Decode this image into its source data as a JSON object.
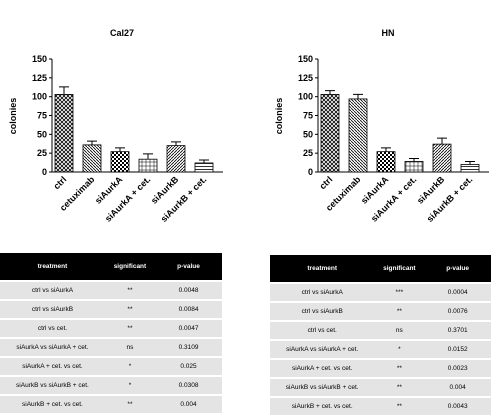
{
  "chart_data": [
    {
      "type": "bar",
      "title": "Cal27",
      "y_label": "colonies",
      "categories": [
        "ctrl",
        "cetuximab",
        "siAurkA",
        "siAurkA + cet.",
        "siAurkB",
        "siAurkB + cet."
      ],
      "values": [
        103,
        36,
        27,
        17,
        35,
        12
      ],
      "errors": [
        10,
        5,
        5,
        7,
        5,
        4
      ],
      "ylim": [
        0,
        150
      ],
      "yticks": [
        0,
        25,
        50,
        75,
        100,
        125,
        150
      ]
    },
    {
      "type": "bar",
      "title": "HN",
      "y_label": "colonies",
      "categories": [
        "ctrl",
        "cetuximab",
        "siAurkA",
        "siAurkA + cet.",
        "siAurkB",
        "siAurkB + cet."
      ],
      "values": [
        103,
        97,
        27,
        14,
        37,
        10
      ],
      "errors": [
        5,
        6,
        5,
        4,
        8,
        4
      ],
      "ylim": [
        0,
        150
      ],
      "yticks": [
        0,
        25,
        50,
        75,
        100,
        125,
        150
      ]
    }
  ],
  "tables": [
    {
      "header": [
        "treatment",
        "significant",
        "p-value"
      ],
      "rows": [
        [
          "ctrl vs siAurkA",
          "**",
          "0.0048"
        ],
        [
          "ctrl vs siAurkB",
          "**",
          "0.0084"
        ],
        [
          "ctrl vs cet.",
          "**",
          "0.0047"
        ],
        [
          "siAurkA  vs siAurkA  + cet.",
          "ns",
          "0.3109"
        ],
        [
          "siAurkA  + cet. vs cet.",
          "*",
          "0.025"
        ],
        [
          "siAurkB  vs siAurkB + cet.",
          "*",
          "0.0308"
        ],
        [
          "siAurkB  + cet. vs cet.",
          "**",
          "0.004"
        ]
      ]
    },
    {
      "header": [
        "treatment",
        "significant",
        "p-value"
      ],
      "rows": [
        [
          "ctrl vs siAurkA",
          "***",
          "0.0004"
        ],
        [
          "ctrl vs siAurkB",
          "**",
          "0.0076"
        ],
        [
          "ctrl vs cet.",
          "ns",
          "0.3701"
        ],
        [
          "siAurkA  vs siAurkA  + cet.",
          "*",
          "0.0152"
        ],
        [
          "siAurkA  + cet. vs cet.",
          "**",
          "0.0023"
        ],
        [
          "siAurkB  vs siAurkB + cet.",
          "**",
          "0.004"
        ],
        [
          "siAurkB  + cet. vs cet.",
          "**",
          "0.0043"
        ]
      ]
    }
  ]
}
